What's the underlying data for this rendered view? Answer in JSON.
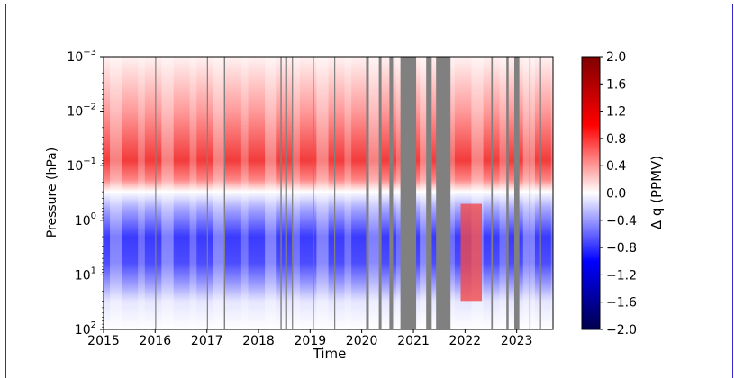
{
  "chart_data": {
    "type": "heatmap",
    "xlabel": "Time",
    "ylabel": "Pressure (hPa)",
    "x_ticks": [
      "2015",
      "2016",
      "2017",
      "2018",
      "2019",
      "2020",
      "2021",
      "2022",
      "2023"
    ],
    "xlim": [
      "2015-01-01",
      "2023-09-15"
    ],
    "y_scale": "log",
    "y_inverted": true,
    "ylim": [
      100,
      0.001
    ],
    "y_ticks": [
      {
        "base": "10",
        "exp": "−3"
      },
      {
        "base": "10",
        "exp": "−2"
      },
      {
        "base": "10",
        "exp": "−1"
      },
      {
        "base": "10",
        "exp": "0"
      },
      {
        "base": "10",
        "exp": "1"
      },
      {
        "base": "10",
        "exp": "2"
      }
    ],
    "colorbar": {
      "label": "Δ q (PPMV)",
      "min": -2.0,
      "max": 2.0,
      "ticks": [
        "2.0",
        "1.6",
        "1.2",
        "0.8",
        "0.4",
        "0.0",
        "−0.4",
        "−0.8",
        "−1.2",
        "−1.6",
        "−2.0"
      ],
      "colormap": "seismic"
    },
    "positive_band_pressure_hPa": [
      0.001,
      0.3
    ],
    "negative_band_pressure_hPa": [
      0.3,
      30
    ],
    "missing_data_color": "#808080",
    "missing_data_periods": [
      [
        "2016-01-01",
        "2016-01-08"
      ],
      [
        "2017-01-01",
        "2017-01-06"
      ],
      [
        "2017-05-01",
        "2017-05-10"
      ],
      [
        "2018-06-05",
        "2018-06-14"
      ],
      [
        "2018-07-15",
        "2018-07-22"
      ],
      [
        "2018-08-25",
        "2018-09-02"
      ],
      [
        "2019-01-20",
        "2019-01-27"
      ],
      [
        "2019-06-20",
        "2019-06-27"
      ],
      [
        "2020-02-01",
        "2020-02-20"
      ],
      [
        "2020-05-01",
        "2020-05-20"
      ],
      [
        "2020-07-15",
        "2020-08-10"
      ],
      [
        "2020-10-01",
        "2021-01-20"
      ],
      [
        "2021-04-01",
        "2021-05-10"
      ],
      [
        "2021-06-10",
        "2021-09-20"
      ],
      [
        "2022-07-05",
        "2022-07-16"
      ],
      [
        "2022-10-20",
        "2022-11-05"
      ],
      [
        "2022-12-15",
        "2023-01-20"
      ],
      [
        "2023-04-01",
        "2023-04-09"
      ],
      [
        "2023-06-15",
        "2023-06-22"
      ]
    ],
    "anomaly_notes": [
      {
        "period": [
          "2021-12-01",
          "2022-04-30"
        ],
        "pressure_hPa": [
          0.5,
          30
        ],
        "sign": "positive"
      }
    ]
  }
}
